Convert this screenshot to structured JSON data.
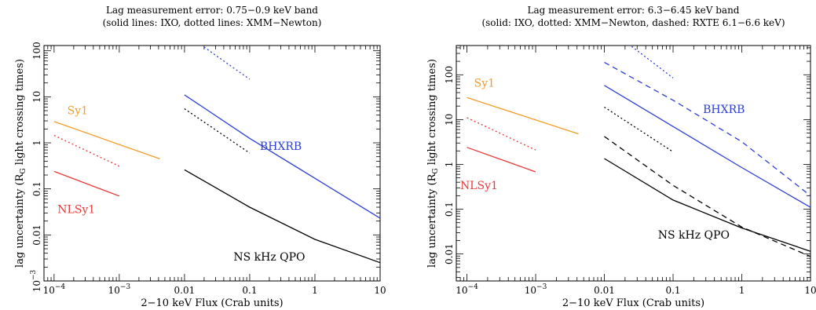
{
  "chart_data": [
    {
      "type": "line",
      "title": "Lag measurement error: 0.75−0.9 keV band",
      "subtitle": "(solid lines: IXO, dotted lines: XMM−Newton)",
      "xlabel": "2−10 keV Flux (Crab units)",
      "ylabel": "lag uncertainty (R",
      "ylabel_sub": "G",
      "ylabel_tail": " light crossing times)",
      "xscale": "log",
      "yscale": "log",
      "xlim": [
        7e-05,
        10
      ],
      "ylim": [
        0.001,
        130
      ],
      "grid": false,
      "x_ticks": [
        {
          "value": 0.0001,
          "label": "10",
          "sup": "−4"
        },
        {
          "value": 0.001,
          "label": "10",
          "sup": "−3"
        },
        {
          "value": 0.01,
          "label": "0.01",
          "sup": ""
        },
        {
          "value": 0.1,
          "label": "0.1",
          "sup": ""
        },
        {
          "value": 1,
          "label": "1",
          "sup": ""
        },
        {
          "value": 10,
          "label": "10",
          "sup": ""
        }
      ],
      "y_ticks": [
        {
          "value": 0.001,
          "label": "10",
          "sup": "−3"
        },
        {
          "value": 0.01,
          "label": "0.01",
          "sup": ""
        },
        {
          "value": 0.1,
          "label": "0.1",
          "sup": ""
        },
        {
          "value": 1,
          "label": "1",
          "sup": ""
        },
        {
          "value": 10,
          "label": "10",
          "sup": ""
        },
        {
          "value": 100,
          "label": "100",
          "sup": ""
        }
      ],
      "series": [
        {
          "color": "#f39c28",
          "style": "solid",
          "x": [
            0.0001,
            0.0042
          ],
          "y": [
            2.9,
            0.45
          ]
        },
        {
          "color": "#e8393a",
          "style": "dotted",
          "x": [
            0.0001,
            0.001
          ],
          "y": [
            1.45,
            0.31
          ]
        },
        {
          "color": "#e8393a",
          "style": "solid",
          "x": [
            0.0001,
            0.001
          ],
          "y": [
            0.24,
            0.07
          ]
        },
        {
          "color": "#2d3fd6",
          "style": "dotted",
          "x": [
            0.02,
            0.1
          ],
          "y": [
            120,
            24
          ]
        },
        {
          "color": "#2d3fd6",
          "style": "solid",
          "x": [
            0.01,
            0.1,
            1,
            10
          ],
          "y": [
            11,
            1.25,
            0.17,
            0.023
          ]
        },
        {
          "color": "#000000",
          "style": "dotted",
          "x": [
            0.01,
            0.1
          ],
          "y": [
            5.5,
            0.6
          ]
        },
        {
          "color": "#000000",
          "style": "solid",
          "x": [
            0.01,
            0.1,
            1,
            10
          ],
          "y": [
            0.26,
            0.04,
            0.008,
            0.0025
          ]
        }
      ],
      "annotations": [
        {
          "text": "Sy1",
          "color": "#f39c28",
          "x": 0.00023,
          "y": 4.2
        },
        {
          "text": "NLSy1",
          "color": "#e8393a",
          "x": 0.00022,
          "y": 0.03
        },
        {
          "text": "BHXRB",
          "color": "#2d3fd6",
          "x": 0.3,
          "y": 0.7
        },
        {
          "text": "NS kHz QPO",
          "color": "#000000",
          "x": 0.2,
          "y": 0.0028
        }
      ]
    },
    {
      "type": "line",
      "title": "Lag measurement error: 6.3−6.45 keV band",
      "subtitle": "(solid: IXO, dotted: XMM−Newton, dashed: RXTE 6.1−6.6 keV)",
      "xlabel": "2−10 keV Flux (Crab units)",
      "ylabel": "lag uncertainty (R",
      "ylabel_sub": "G",
      "ylabel_tail": " light crossing times)",
      "xscale": "log",
      "yscale": "log",
      "xlim": [
        7e-05,
        10
      ],
      "ylim": [
        0.0025,
        450
      ],
      "grid": false,
      "x_ticks": [
        {
          "value": 0.0001,
          "label": "10",
          "sup": "−4"
        },
        {
          "value": 0.001,
          "label": "10",
          "sup": "−3"
        },
        {
          "value": 0.01,
          "label": "0.01",
          "sup": ""
        },
        {
          "value": 0.1,
          "label": "0.1",
          "sup": ""
        },
        {
          "value": 1,
          "label": "1",
          "sup": ""
        },
        {
          "value": 10,
          "label": "10",
          "sup": ""
        }
      ],
      "y_ticks": [
        {
          "value": 0.01,
          "label": "0.01",
          "sup": ""
        },
        {
          "value": 0.1,
          "label": "0.1",
          "sup": ""
        },
        {
          "value": 1,
          "label": "1",
          "sup": ""
        },
        {
          "value": 10,
          "label": "10",
          "sup": ""
        },
        {
          "value": 100,
          "label": "100",
          "sup": ""
        }
      ],
      "series": [
        {
          "color": "#f39c28",
          "style": "solid",
          "x": [
            0.0001,
            0.0042
          ],
          "y": [
            31,
            4.8
          ]
        },
        {
          "color": "#e8393a",
          "style": "dotted",
          "x": [
            0.0001,
            0.001
          ],
          "y": [
            11,
            2.1
          ]
        },
        {
          "color": "#e8393a",
          "style": "solid",
          "x": [
            0.0001,
            0.001
          ],
          "y": [
            2.4,
            0.68
          ]
        },
        {
          "color": "#2d3fd6",
          "style": "dotted",
          "x": [
            0.025,
            0.1
          ],
          "y": [
            430,
            85
          ]
        },
        {
          "color": "#2d3fd6",
          "style": "dashed",
          "x": [
            0.01,
            0.1,
            1,
            10
          ],
          "y": [
            190,
            27,
            3.2,
            0.2
          ]
        },
        {
          "color": "#2d3fd6",
          "style": "solid",
          "x": [
            0.01,
            0.1,
            1,
            10
          ],
          "y": [
            58,
            7,
            0.85,
            0.11
          ]
        },
        {
          "color": "#000000",
          "style": "dotted",
          "x": [
            0.01,
            0.1
          ],
          "y": [
            19,
            1.9
          ]
        },
        {
          "color": "#000000",
          "style": "dashed",
          "x": [
            0.01,
            0.1,
            1,
            10
          ],
          "y": [
            4.2,
            0.34,
            0.04,
            0.0088
          ]
        },
        {
          "color": "#000000",
          "style": "solid",
          "x": [
            0.01,
            0.1,
            1,
            10
          ],
          "y": [
            1.35,
            0.16,
            0.038,
            0.0115
          ]
        }
      ],
      "annotations": [
        {
          "text": "Sy1",
          "color": "#f39c28",
          "x": 0.00018,
          "y": 54
        },
        {
          "text": "NLSy1",
          "color": "#e8393a",
          "x": 0.00015,
          "y": 0.28
        },
        {
          "text": "BHXRB",
          "color": "#2d3fd6",
          "x": 0.55,
          "y": 14
        },
        {
          "text": "NS kHz QPO",
          "color": "#000000",
          "x": 0.2,
          "y": 0.022
        }
      ]
    }
  ]
}
